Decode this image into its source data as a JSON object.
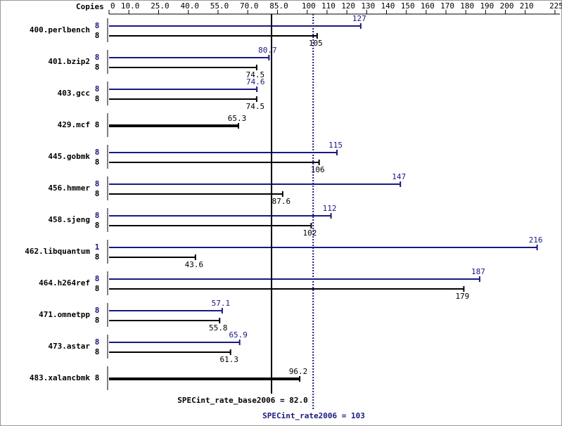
{
  "chart_data": {
    "type": "bar",
    "orientation": "horizontal",
    "copies_label": "Copies",
    "categories": [
      "400.perlbench",
      "401.bzip2",
      "403.gcc",
      "429.mcf",
      "445.gobmk",
      "456.hmmer",
      "458.sjeng",
      "462.libquantum",
      "464.h264ref",
      "471.omnetpp",
      "473.astar",
      "483.xalancbmk"
    ],
    "series": [
      {
        "color": "#191980",
        "copies": [
          8,
          8,
          8,
          null,
          8,
          8,
          8,
          1,
          8,
          8,
          8,
          null
        ],
        "values": [
          127,
          80.7,
          74.6,
          null,
          115,
          147,
          112,
          216,
          187,
          57.1,
          65.9,
          null
        ]
      },
      {
        "color": "#000000",
        "copies": [
          8,
          8,
          8,
          8,
          8,
          8,
          8,
          8,
          8,
          8,
          8,
          8
        ],
        "values": [
          105,
          74.5,
          74.5,
          65.3,
          106,
          87.6,
          102,
          43.6,
          179,
          55.8,
          61.3,
          96.2
        ]
      }
    ],
    "xlim": [
      0,
      225
    ],
    "xticks": [
      0,
      {
        "value": 10,
        "label": "10.0"
      },
      {
        "value": 25,
        "label": "25.0"
      },
      {
        "value": 40,
        "label": "40.0"
      },
      {
        "value": 55,
        "label": "55.0"
      },
      {
        "value": 70,
        "label": "70.0"
      },
      {
        "value": 85,
        "label": "85.0"
      },
      100,
      110,
      120,
      130,
      140,
      150,
      160,
      170,
      180,
      190,
      200,
      210,
      225
    ],
    "reference_lines": [
      {
        "label": "SPECint_rate_base2006 = 82.0",
        "value": 82.0,
        "color": "#000000",
        "style": "solid"
      },
      {
        "label": "SPECint_rate2006 = 103",
        "value": 103,
        "color": "#191980",
        "style": "dotted"
      }
    ]
  }
}
